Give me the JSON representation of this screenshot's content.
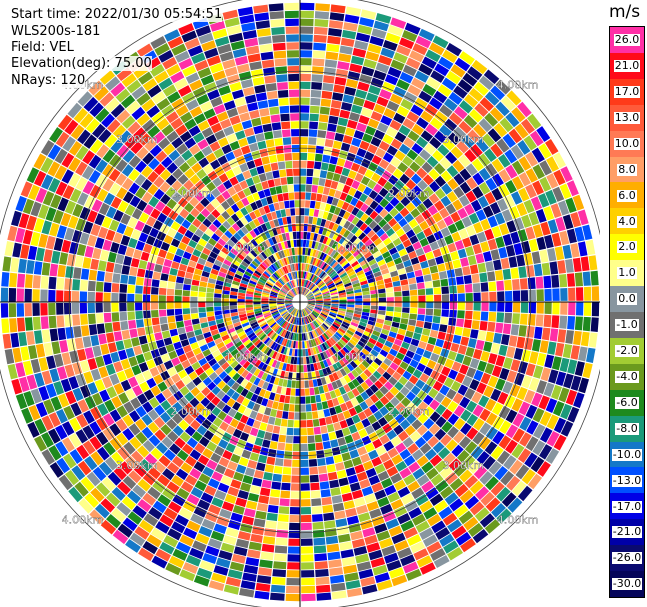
{
  "info": {
    "start_time": "Start time: 2022/01/30 05:54:51",
    "instrument": "WLS200s-181",
    "field": "Field: VEL",
    "elevation": "Elevation(deg): 75.00",
    "nrays": "NRays: 120"
  },
  "ppi": {
    "num_rays": 120,
    "num_gates": 38,
    "max_range_km": 3.9,
    "range_rings_km": [
      1,
      2,
      3,
      4
    ],
    "ring_labels": [
      "1.00km",
      "2.00km",
      "3.00km",
      "4.00km"
    ]
  },
  "colorbar": {
    "unit": "m/s",
    "bins": [
      {
        "label": "26.0",
        "color": "#ff2fa6"
      },
      {
        "label": "21.0",
        "color": "#ff0a1a"
      },
      {
        "label": "17.0",
        "color": "#ff3a1a"
      },
      {
        "label": "13.0",
        "color": "#ff5a3a"
      },
      {
        "label": "10.0",
        "color": "#ff7a55"
      },
      {
        "label": "8.0",
        "color": "#ff9e66"
      },
      {
        "label": "6.0",
        "color": "#ffae00"
      },
      {
        "label": "4.0",
        "color": "#ffd000"
      },
      {
        "label": "2.0",
        "color": "#ffff00"
      },
      {
        "label": "1.0",
        "color": "#ffff8a"
      },
      {
        "label": "0.0",
        "color": "#8896a0"
      },
      {
        "label": "-1.0",
        "color": "#707070"
      },
      {
        "label": "-2.0",
        "color": "#a2cc33"
      },
      {
        "label": "-4.0",
        "color": "#6b9a1e"
      },
      {
        "label": "-6.0",
        "color": "#1e8a1e"
      },
      {
        "label": "-8.0",
        "color": "#1b9a7a"
      },
      {
        "label": "-10.0",
        "color": "#1478c8"
      },
      {
        "label": "-13.0",
        "color": "#0050ff"
      },
      {
        "label": "-17.0",
        "color": "#0000e6"
      },
      {
        "label": "-21.0",
        "color": "#0000a8"
      },
      {
        "label": "-26.0",
        "color": "#0a0a70"
      },
      {
        "label": "-30.0",
        "color": "#05055a"
      }
    ]
  }
}
